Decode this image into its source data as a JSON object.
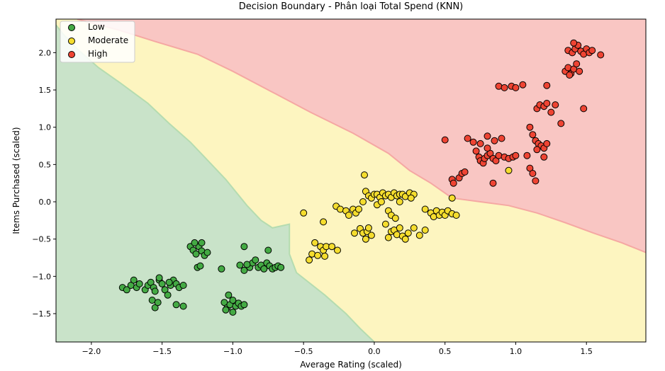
{
  "chart_data": {
    "type": "scatter",
    "title": "Decision Boundary - Phân loại Total Spend (KNN)",
    "xlabel": "Average Rating (scaled)",
    "ylabel": "Items Purchased (scaled)",
    "xlim": [
      -2.25,
      1.92
    ],
    "ylim": [
      -1.88,
      2.45
    ],
    "xticks": [
      -2.0,
      -1.5,
      -1.0,
      -0.5,
      0.0,
      0.5,
      1.0,
      1.5
    ],
    "yticks": [
      -1.5,
      -1.0,
      -0.5,
      0.0,
      0.5,
      1.0,
      1.5,
      2.0
    ],
    "xtick_labels": [
      "−2.0",
      "−1.5",
      "−1.0",
      "−0.5",
      "0.0",
      "0.5",
      "1.0",
      "1.5"
    ],
    "ytick_labels": [
      "−1.5",
      "−1.0",
      "−0.5",
      "0.0",
      "0.5",
      "1.0",
      "1.5",
      "2.0"
    ],
    "legend_position": "top-left",
    "regions": [
      {
        "class": "Low",
        "color": "#c9e3c9"
      },
      {
        "class": "Moderate",
        "color": "#fdf5c0"
      },
      {
        "class": "High",
        "color": "#f9c6c3"
      }
    ],
    "boundaries": {
      "low_moderate": [
        [
          -2.25,
          2.37
        ],
        [
          -2.2,
          2.25
        ],
        [
          -2.1,
          2.05
        ],
        [
          -1.95,
          1.8
        ],
        [
          -1.8,
          1.6
        ],
        [
          -1.6,
          1.32
        ],
        [
          -1.45,
          1.05
        ],
        [
          -1.3,
          0.8
        ],
        [
          -1.2,
          0.6
        ],
        [
          -1.05,
          0.3
        ],
        [
          -0.9,
          -0.05
        ],
        [
          -0.8,
          -0.25
        ],
        [
          -0.72,
          -0.35
        ],
        [
          -0.6,
          -0.3
        ],
        [
          -0.6,
          -0.7
        ],
        [
          -0.55,
          -0.95
        ],
        [
          -0.35,
          -1.25
        ],
        [
          -0.2,
          -1.5
        ],
        [
          -0.1,
          -1.7
        ],
        [
          0.0,
          -1.88
        ]
      ],
      "moderate_high": [
        [
          -2.1,
          2.45
        ],
        [
          -1.8,
          2.3
        ],
        [
          -1.55,
          2.15
        ],
        [
          -1.25,
          1.98
        ],
        [
          -1.0,
          1.75
        ],
        [
          -0.7,
          1.45
        ],
        [
          -0.45,
          1.2
        ],
        [
          -0.15,
          0.92
        ],
        [
          0.1,
          0.65
        ],
        [
          0.25,
          0.42
        ],
        [
          0.4,
          0.25
        ],
        [
          0.55,
          0.05
        ],
        [
          0.75,
          0.0
        ],
        [
          0.95,
          -0.05
        ],
        [
          1.15,
          -0.15
        ],
        [
          1.35,
          -0.28
        ],
        [
          1.55,
          -0.42
        ],
        [
          1.75,
          -0.55
        ],
        [
          1.92,
          -0.68
        ]
      ]
    },
    "series": [
      {
        "name": "Low",
        "color": "#44aa44",
        "points": [
          [
            -1.78,
            -1.15
          ],
          [
            -1.75,
            -1.18
          ],
          [
            -1.72,
            -1.12
          ],
          [
            -1.7,
            -1.05
          ],
          [
            -1.68,
            -1.15
          ],
          [
            -1.66,
            -1.1
          ],
          [
            -1.62,
            -1.18
          ],
          [
            -1.6,
            -1.12
          ],
          [
            -1.58,
            -1.08
          ],
          [
            -1.56,
            -1.15
          ],
          [
            -1.55,
            -1.2
          ],
          [
            -1.52,
            -1.05
          ],
          [
            -1.5,
            -1.1
          ],
          [
            -1.48,
            -1.18
          ],
          [
            -1.46,
            -1.25
          ],
          [
            -1.44,
            -1.12
          ],
          [
            -1.42,
            -1.05
          ],
          [
            -1.4,
            -1.1
          ],
          [
            -1.38,
            -1.15
          ],
          [
            -1.35,
            -1.12
          ],
          [
            -1.57,
            -1.32
          ],
          [
            -1.55,
            -1.42
          ],
          [
            -1.53,
            -1.35
          ],
          [
            -1.52,
            -1.02
          ],
          [
            -1.45,
            -1.08
          ],
          [
            -1.4,
            -1.38
          ],
          [
            -1.35,
            -1.4
          ],
          [
            -1.3,
            -0.6
          ],
          [
            -1.28,
            -0.65
          ],
          [
            -1.26,
            -0.7
          ],
          [
            -1.24,
            -0.6
          ],
          [
            -1.22,
            -0.66
          ],
          [
            -1.2,
            -0.72
          ],
          [
            -1.18,
            -0.68
          ],
          [
            -1.25,
            -0.88
          ],
          [
            -1.23,
            -0.86
          ],
          [
            -1.27,
            -0.55
          ],
          [
            -1.22,
            -0.55
          ],
          [
            -1.06,
            -1.35
          ],
          [
            -1.04,
            -1.42
          ],
          [
            -1.02,
            -1.38
          ],
          [
            -1.0,
            -1.32
          ],
          [
            -0.98,
            -1.4
          ],
          [
            -0.96,
            -1.36
          ],
          [
            -0.94,
            -1.4
          ],
          [
            -1.05,
            -1.45
          ],
          [
            -1.0,
            -1.48
          ],
          [
            -1.03,
            -1.25
          ],
          [
            -0.92,
            -1.38
          ],
          [
            -1.08,
            -0.9
          ],
          [
            -0.95,
            -0.85
          ],
          [
            -0.92,
            -0.92
          ],
          [
            -0.88,
            -0.88
          ],
          [
            -0.86,
            -0.82
          ],
          [
            -0.84,
            -0.78
          ],
          [
            -0.82,
            -0.88
          ],
          [
            -0.8,
            -0.85
          ],
          [
            -0.78,
            -0.9
          ],
          [
            -0.76,
            -0.82
          ],
          [
            -0.74,
            -0.86
          ],
          [
            -0.72,
            -0.9
          ],
          [
            -0.7,
            -0.88
          ],
          [
            -0.68,
            -0.86
          ],
          [
            -0.66,
            -0.88
          ],
          [
            -0.92,
            -0.6
          ],
          [
            -0.75,
            -0.65
          ],
          [
            -0.9,
            -0.84
          ]
        ]
      },
      {
        "name": "Moderate",
        "color": "#f5dd2e",
        "points": [
          [
            -0.5,
            -0.15
          ],
          [
            -0.46,
            -0.78
          ],
          [
            -0.44,
            -0.7
          ],
          [
            -0.42,
            -0.55
          ],
          [
            -0.4,
            -0.72
          ],
          [
            -0.38,
            -0.6
          ],
          [
            -0.36,
            -0.65
          ],
          [
            -0.34,
            -0.6
          ],
          [
            -0.35,
            -0.73
          ],
          [
            -0.3,
            -0.6
          ],
          [
            -0.36,
            -0.27
          ],
          [
            -0.26,
            -0.65
          ],
          [
            -0.27,
            -0.06
          ],
          [
            -0.24,
            -0.1
          ],
          [
            -0.2,
            -0.12
          ],
          [
            -0.18,
            -0.18
          ],
          [
            -0.15,
            -0.1
          ],
          [
            -0.13,
            -0.15
          ],
          [
            -0.11,
            -0.1
          ],
          [
            -0.14,
            -0.42
          ],
          [
            -0.1,
            -0.36
          ],
          [
            -0.08,
            -0.42
          ],
          [
            -0.06,
            -0.5
          ],
          [
            -0.05,
            -0.4
          ],
          [
            -0.04,
            -0.35
          ],
          [
            -0.02,
            -0.45
          ],
          [
            -0.08,
            0.0
          ],
          [
            -0.06,
            0.14
          ],
          [
            -0.04,
            0.08
          ],
          [
            -0.02,
            0.05
          ],
          [
            0.0,
            0.1
          ],
          [
            0.02,
            0.1
          ],
          [
            0.04,
            0.06
          ],
          [
            0.06,
            0.12
          ],
          [
            0.08,
            0.08
          ],
          [
            0.1,
            0.1
          ],
          [
            0.12,
            0.06
          ],
          [
            0.14,
            0.12
          ],
          [
            0.16,
            0.08
          ],
          [
            0.18,
            0.1
          ],
          [
            0.2,
            0.1
          ],
          [
            0.22,
            0.07
          ],
          [
            0.25,
            0.12
          ],
          [
            0.28,
            0.1
          ],
          [
            -0.07,
            0.36
          ],
          [
            0.02,
            -0.04
          ],
          [
            0.05,
            0.0
          ],
          [
            0.08,
            -0.3
          ],
          [
            0.12,
            -0.4
          ],
          [
            0.14,
            -0.38
          ],
          [
            0.1,
            -0.48
          ],
          [
            0.16,
            -0.44
          ],
          [
            0.2,
            -0.46
          ],
          [
            0.22,
            -0.5
          ],
          [
            0.18,
            -0.35
          ],
          [
            0.24,
            -0.42
          ],
          [
            0.1,
            -0.12
          ],
          [
            0.12,
            -0.18
          ],
          [
            0.15,
            -0.22
          ],
          [
            0.28,
            -0.35
          ],
          [
            0.32,
            -0.45
          ],
          [
            0.36,
            -0.38
          ],
          [
            0.4,
            -0.15
          ],
          [
            0.42,
            -0.2
          ],
          [
            0.44,
            -0.12
          ],
          [
            0.46,
            -0.18
          ],
          [
            0.48,
            -0.14
          ],
          [
            0.5,
            -0.18
          ],
          [
            0.52,
            -0.12
          ],
          [
            0.55,
            -0.16
          ],
          [
            0.58,
            -0.18
          ],
          [
            0.36,
            -0.1
          ],
          [
            0.18,
            0.0
          ],
          [
            0.26,
            0.05
          ],
          [
            0.55,
            0.05
          ],
          [
            0.95,
            0.42
          ]
        ]
      },
      {
        "name": "High",
        "color": "#ee4433",
        "points": [
          [
            0.5,
            0.83
          ],
          [
            0.55,
            0.3
          ],
          [
            0.56,
            0.25
          ],
          [
            0.6,
            0.32
          ],
          [
            0.62,
            0.38
          ],
          [
            0.64,
            0.4
          ],
          [
            0.66,
            0.85
          ],
          [
            0.7,
            0.8
          ],
          [
            0.72,
            0.68
          ],
          [
            0.74,
            0.6
          ],
          [
            0.75,
            0.55
          ],
          [
            0.77,
            0.52
          ],
          [
            0.78,
            0.58
          ],
          [
            0.8,
            0.62
          ],
          [
            0.82,
            0.65
          ],
          [
            0.84,
            0.58
          ],
          [
            0.86,
            0.55
          ],
          [
            0.88,
            0.62
          ],
          [
            0.8,
            0.88
          ],
          [
            0.85,
            0.82
          ],
          [
            0.9,
            0.85
          ],
          [
            0.92,
            0.6
          ],
          [
            0.95,
            0.58
          ],
          [
            0.98,
            0.6
          ],
          [
            1.0,
            0.62
          ],
          [
            0.84,
            0.25
          ],
          [
            0.75,
            0.78
          ],
          [
            0.8,
            0.72
          ],
          [
            0.88,
            1.55
          ],
          [
            0.92,
            1.53
          ],
          [
            0.97,
            1.55
          ],
          [
            1.0,
            1.53
          ],
          [
            1.05,
            1.57
          ],
          [
            1.1,
            1.0
          ],
          [
            1.12,
            0.9
          ],
          [
            1.14,
            0.82
          ],
          [
            1.16,
            0.78
          ],
          [
            1.18,
            0.75
          ],
          [
            1.2,
            0.72
          ],
          [
            1.22,
            0.78
          ],
          [
            1.15,
            0.7
          ],
          [
            1.1,
            0.45
          ],
          [
            1.12,
            0.38
          ],
          [
            1.14,
            0.28
          ],
          [
            1.08,
            0.62
          ],
          [
            1.2,
            0.6
          ],
          [
            1.15,
            1.25
          ],
          [
            1.17,
            1.3
          ],
          [
            1.2,
            1.28
          ],
          [
            1.22,
            1.32
          ],
          [
            1.25,
            1.2
          ],
          [
            1.22,
            1.56
          ],
          [
            1.28,
            1.3
          ],
          [
            1.32,
            1.05
          ],
          [
            1.35,
            1.75
          ],
          [
            1.37,
            1.8
          ],
          [
            1.39,
            1.72
          ],
          [
            1.41,
            1.78
          ],
          [
            1.43,
            1.85
          ],
          [
            1.45,
            1.75
          ],
          [
            1.38,
            1.7
          ],
          [
            1.37,
            2.03
          ],
          [
            1.4,
            2.0
          ],
          [
            1.42,
            2.05
          ],
          [
            1.44,
            2.1
          ],
          [
            1.46,
            2.02
          ],
          [
            1.48,
            1.98
          ],
          [
            1.5,
            2.05
          ],
          [
            1.52,
            2.0
          ],
          [
            1.54,
            2.03
          ],
          [
            1.41,
            2.13
          ],
          [
            1.48,
            1.25
          ],
          [
            1.6,
            1.97
          ]
        ]
      }
    ]
  }
}
